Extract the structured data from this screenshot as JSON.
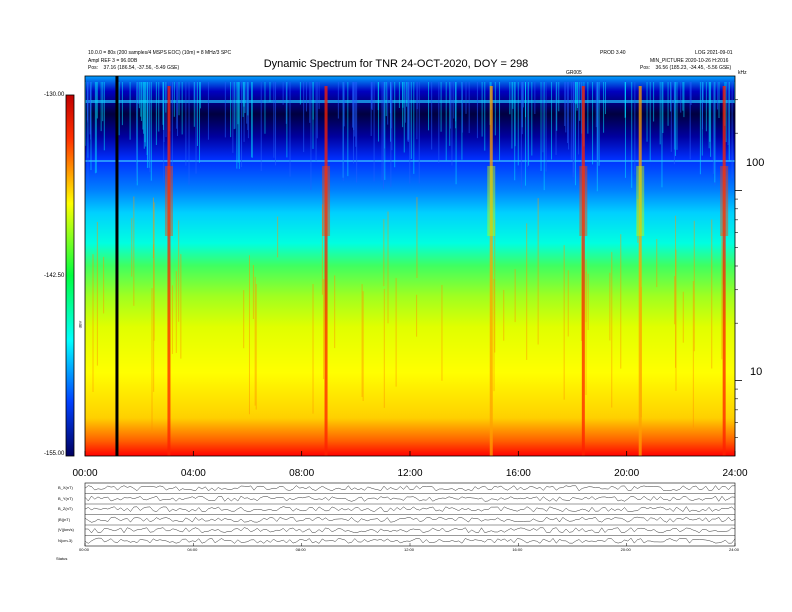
{
  "header": {
    "left_line1": "10.0.0 = 80s (200 samples/4 MSPS EOC) (10m) = 8 MHz/3 SPC",
    "left_line2": "Ampl REF 3 = 96.0DB",
    "left_pos": "Pos:    37.16 (186.54, -37.56, -5.49 GSE)",
    "right_line1": "PROD 3.40",
    "right_line2": "LOG 2021-09-01",
    "right_line3": "MIN_PICTURE 2020-10-26 H:2016",
    "right_pos": "Pos:    36.56 (185.23, -34.45, -5.56 GSE)",
    "marker_label": "GR005",
    "top_right_tag": "kHz"
  },
  "chart_data": {
    "type": "heatmap",
    "title": "Dynamic Spectrum for TNR 24-OCT-2020, DOY = 298",
    "xlabel": "",
    "ylabel": "",
    "x_ticks": [
      "00:00",
      "04:00",
      "08:00",
      "12:00",
      "16:00",
      "20:00",
      "24:00"
    ],
    "x_range_hours": [
      0,
      24
    ],
    "y_scale": "log",
    "y_ticks": [
      "100",
      "10"
    ],
    "y_range": [
      4,
      400
    ],
    "colorbar": {
      "label": "dBV",
      "ticks": [
        "-130.00",
        "-142.50",
        "-155.00"
      ],
      "range": [
        -155,
        -130
      ],
      "colors": [
        "#000080",
        "#0000ff",
        "#00ffff",
        "#00ff00",
        "#ffff00",
        "#ff0000",
        "#800000"
      ]
    },
    "cursor_hour": 1.18,
    "bursts": [
      {
        "hour": 3.1,
        "note": "intense"
      },
      {
        "hour": 8.9,
        "note": "intense"
      },
      {
        "hour": 15.0,
        "note": "moderate"
      },
      {
        "hour": 18.4,
        "note": "intense"
      },
      {
        "hour": 20.5,
        "note": "moderate"
      },
      {
        "hour": 23.6,
        "note": "intense"
      }
    ],
    "bottom_panels": {
      "labels": [
        "B_X(nT)",
        "B_Y(nT)",
        "B_Z(nT)",
        "|B|(nT)",
        "|V|(km/s)",
        "N(cm-3)"
      ],
      "x_ticks": [
        "00:00",
        "04:00",
        "08:00",
        "12:00",
        "16:00",
        "20:00",
        "24:00"
      ],
      "footer_label": "Status"
    }
  },
  "colors": {
    "background": "#ffffff",
    "axis": "#000000"
  }
}
